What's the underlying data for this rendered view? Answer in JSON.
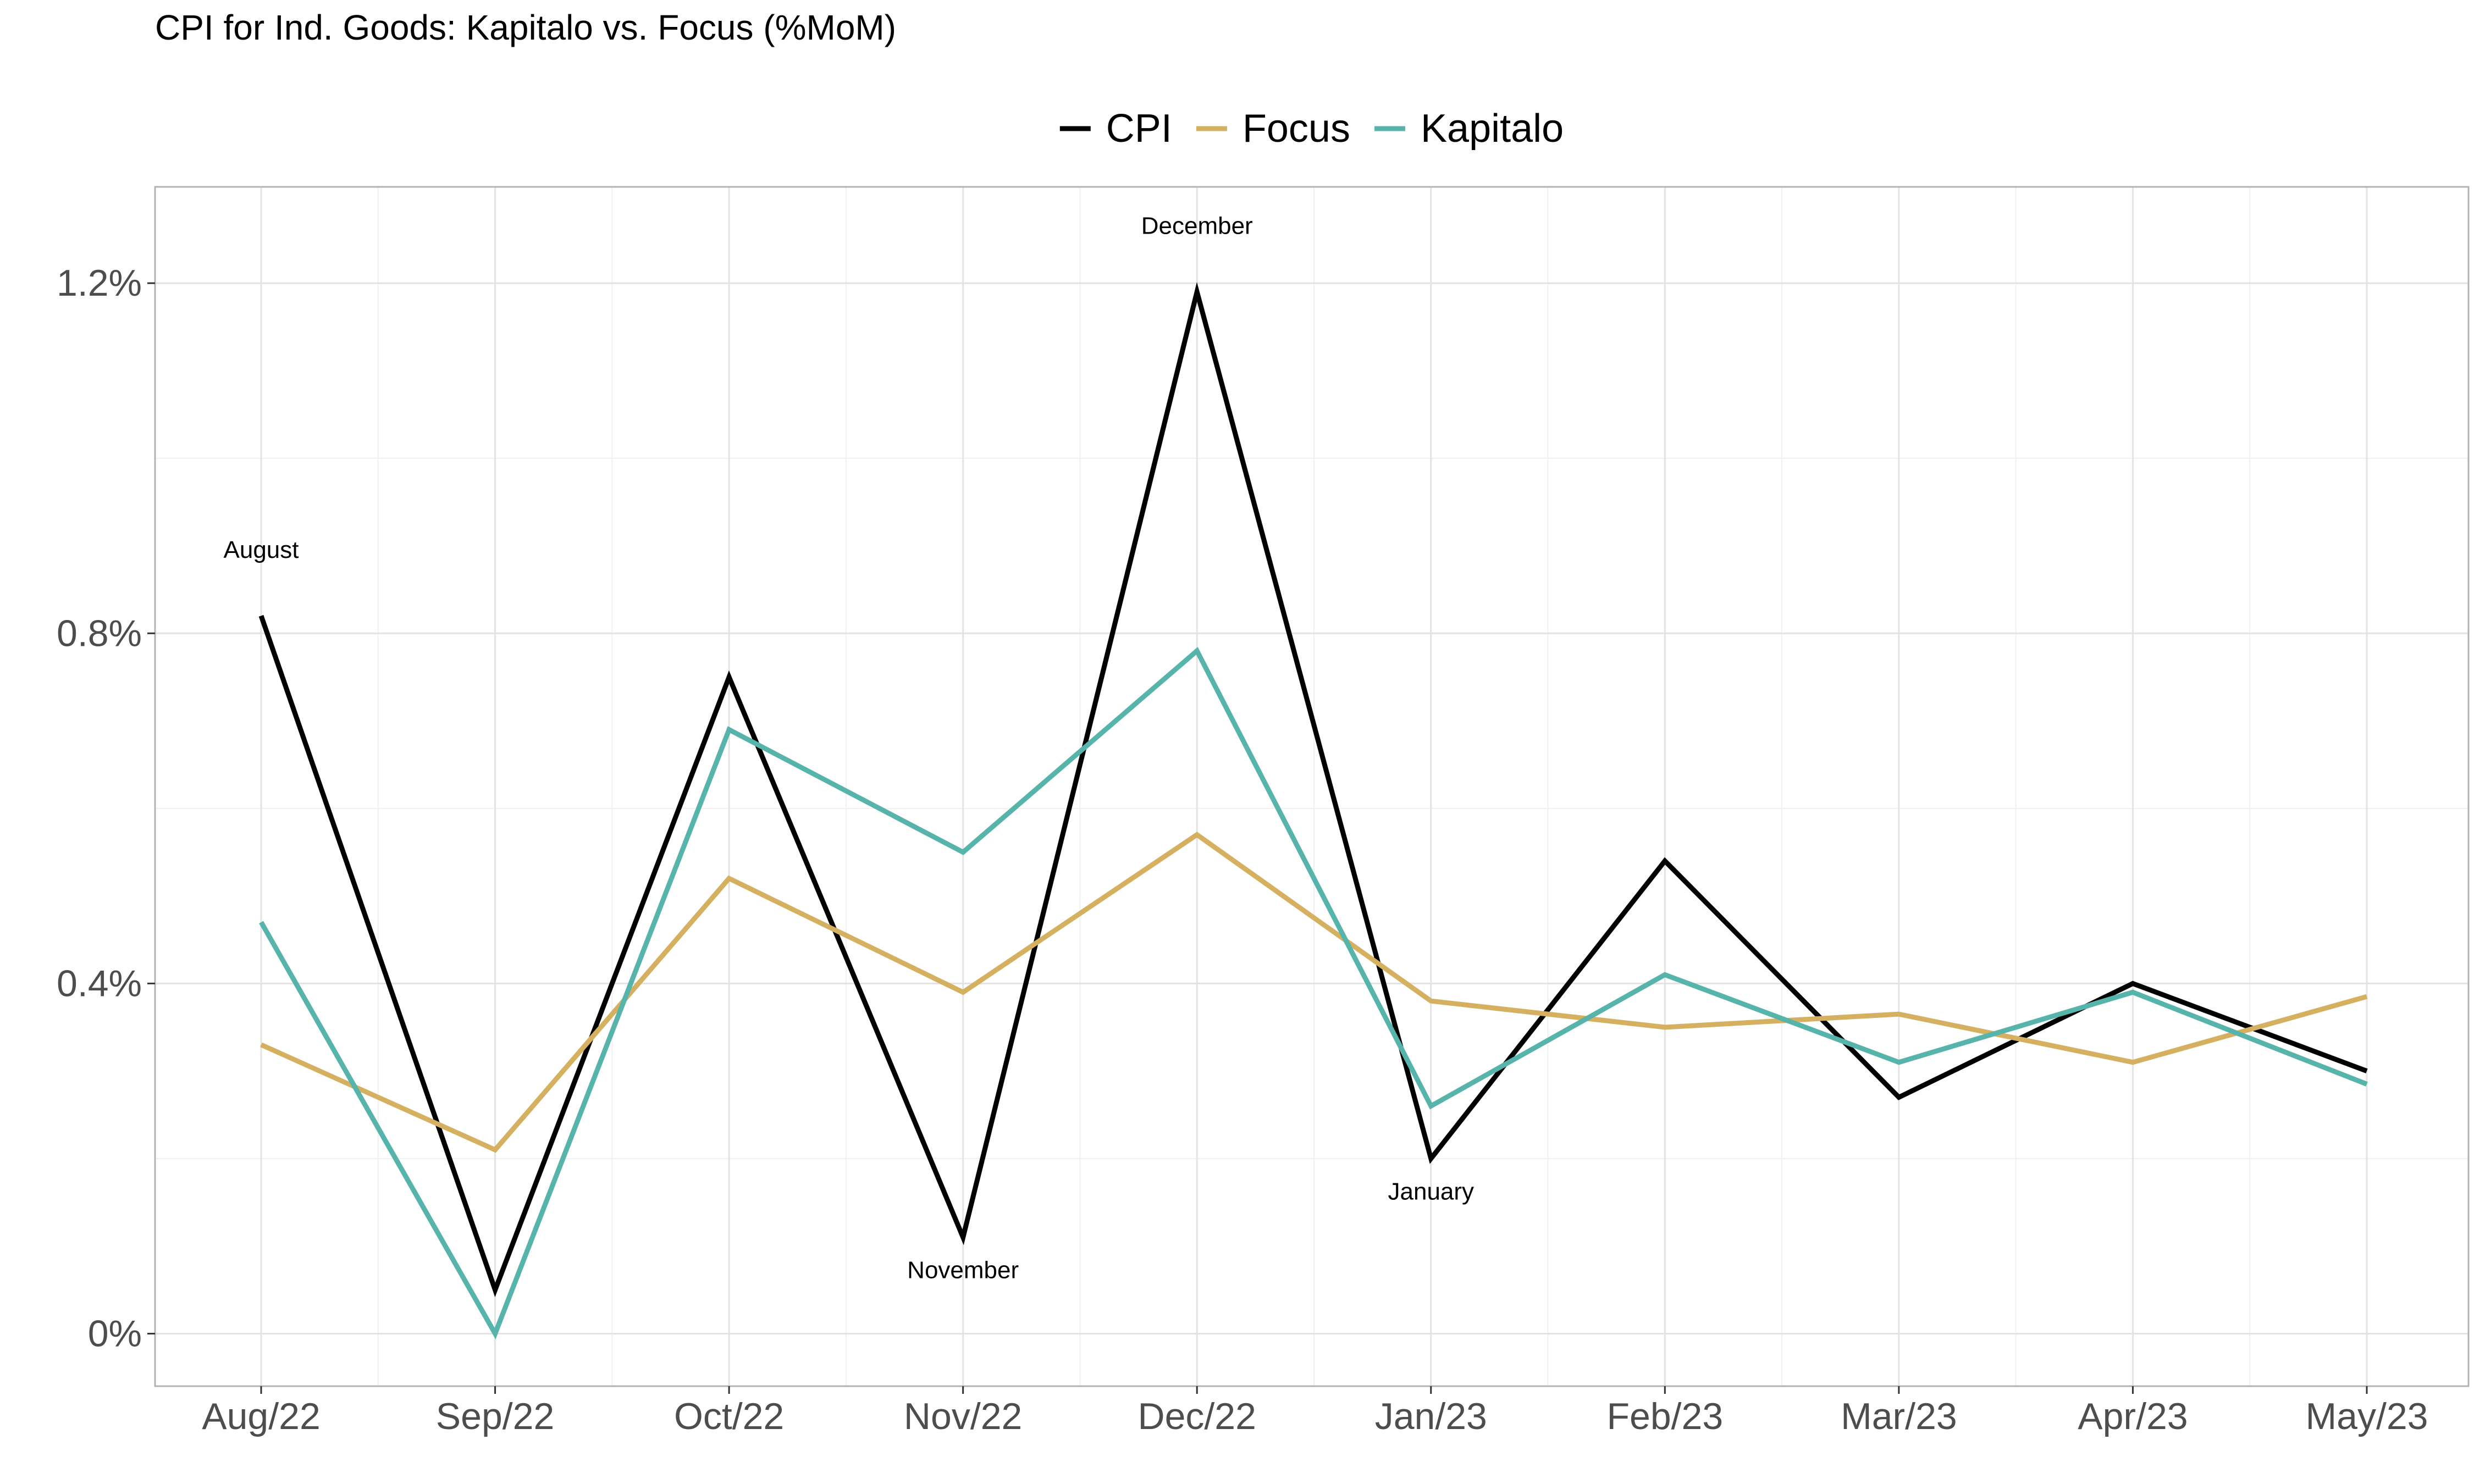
{
  "chart_data": {
    "type": "line",
    "title": "CPI for Ind. Goods: Kapitalo vs. Focus (%MoM)",
    "xlabel": "",
    "ylabel": "",
    "categories": [
      "Aug/22",
      "Sep/22",
      "Oct/22",
      "Nov/22",
      "Dec/22",
      "Jan/23",
      "Feb/23",
      "Mar/23",
      "Apr/23",
      "May/23"
    ],
    "ylim": [
      -0.06,
      1.31
    ],
    "yticks": [
      0,
      0.4,
      0.8,
      1.2
    ],
    "ytick_labels": [
      "0%",
      "0.4%",
      "0.8%",
      "1.2%"
    ],
    "grid": true,
    "legend_position": "top",
    "series": [
      {
        "name": "CPI",
        "color": "#000000",
        "values": [
          0.82,
          0.05,
          0.75,
          0.11,
          1.19,
          0.2,
          0.54,
          0.27,
          0.4,
          0.3
        ]
      },
      {
        "name": "Focus",
        "color": "#D4B060",
        "values": [
          0.33,
          0.21,
          0.52,
          0.39,
          0.57,
          0.38,
          0.35,
          0.365,
          0.31,
          0.385
        ]
      },
      {
        "name": "Kapitalo",
        "color": "#56B4AA",
        "values": [
          0.47,
          0.0,
          0.69,
          0.55,
          0.78,
          0.26,
          0.41,
          0.31,
          0.39,
          0.285
        ]
      }
    ],
    "annotations": [
      {
        "text": "August",
        "series": "CPI",
        "category": "Aug/22",
        "position": "above"
      },
      {
        "text": "November",
        "series": "CPI",
        "category": "Nov/22",
        "position": "below"
      },
      {
        "text": "December",
        "series": "CPI",
        "category": "Dec/22",
        "position": "above"
      },
      {
        "text": "January",
        "series": "CPI",
        "category": "Jan/23",
        "position": "below"
      }
    ]
  }
}
